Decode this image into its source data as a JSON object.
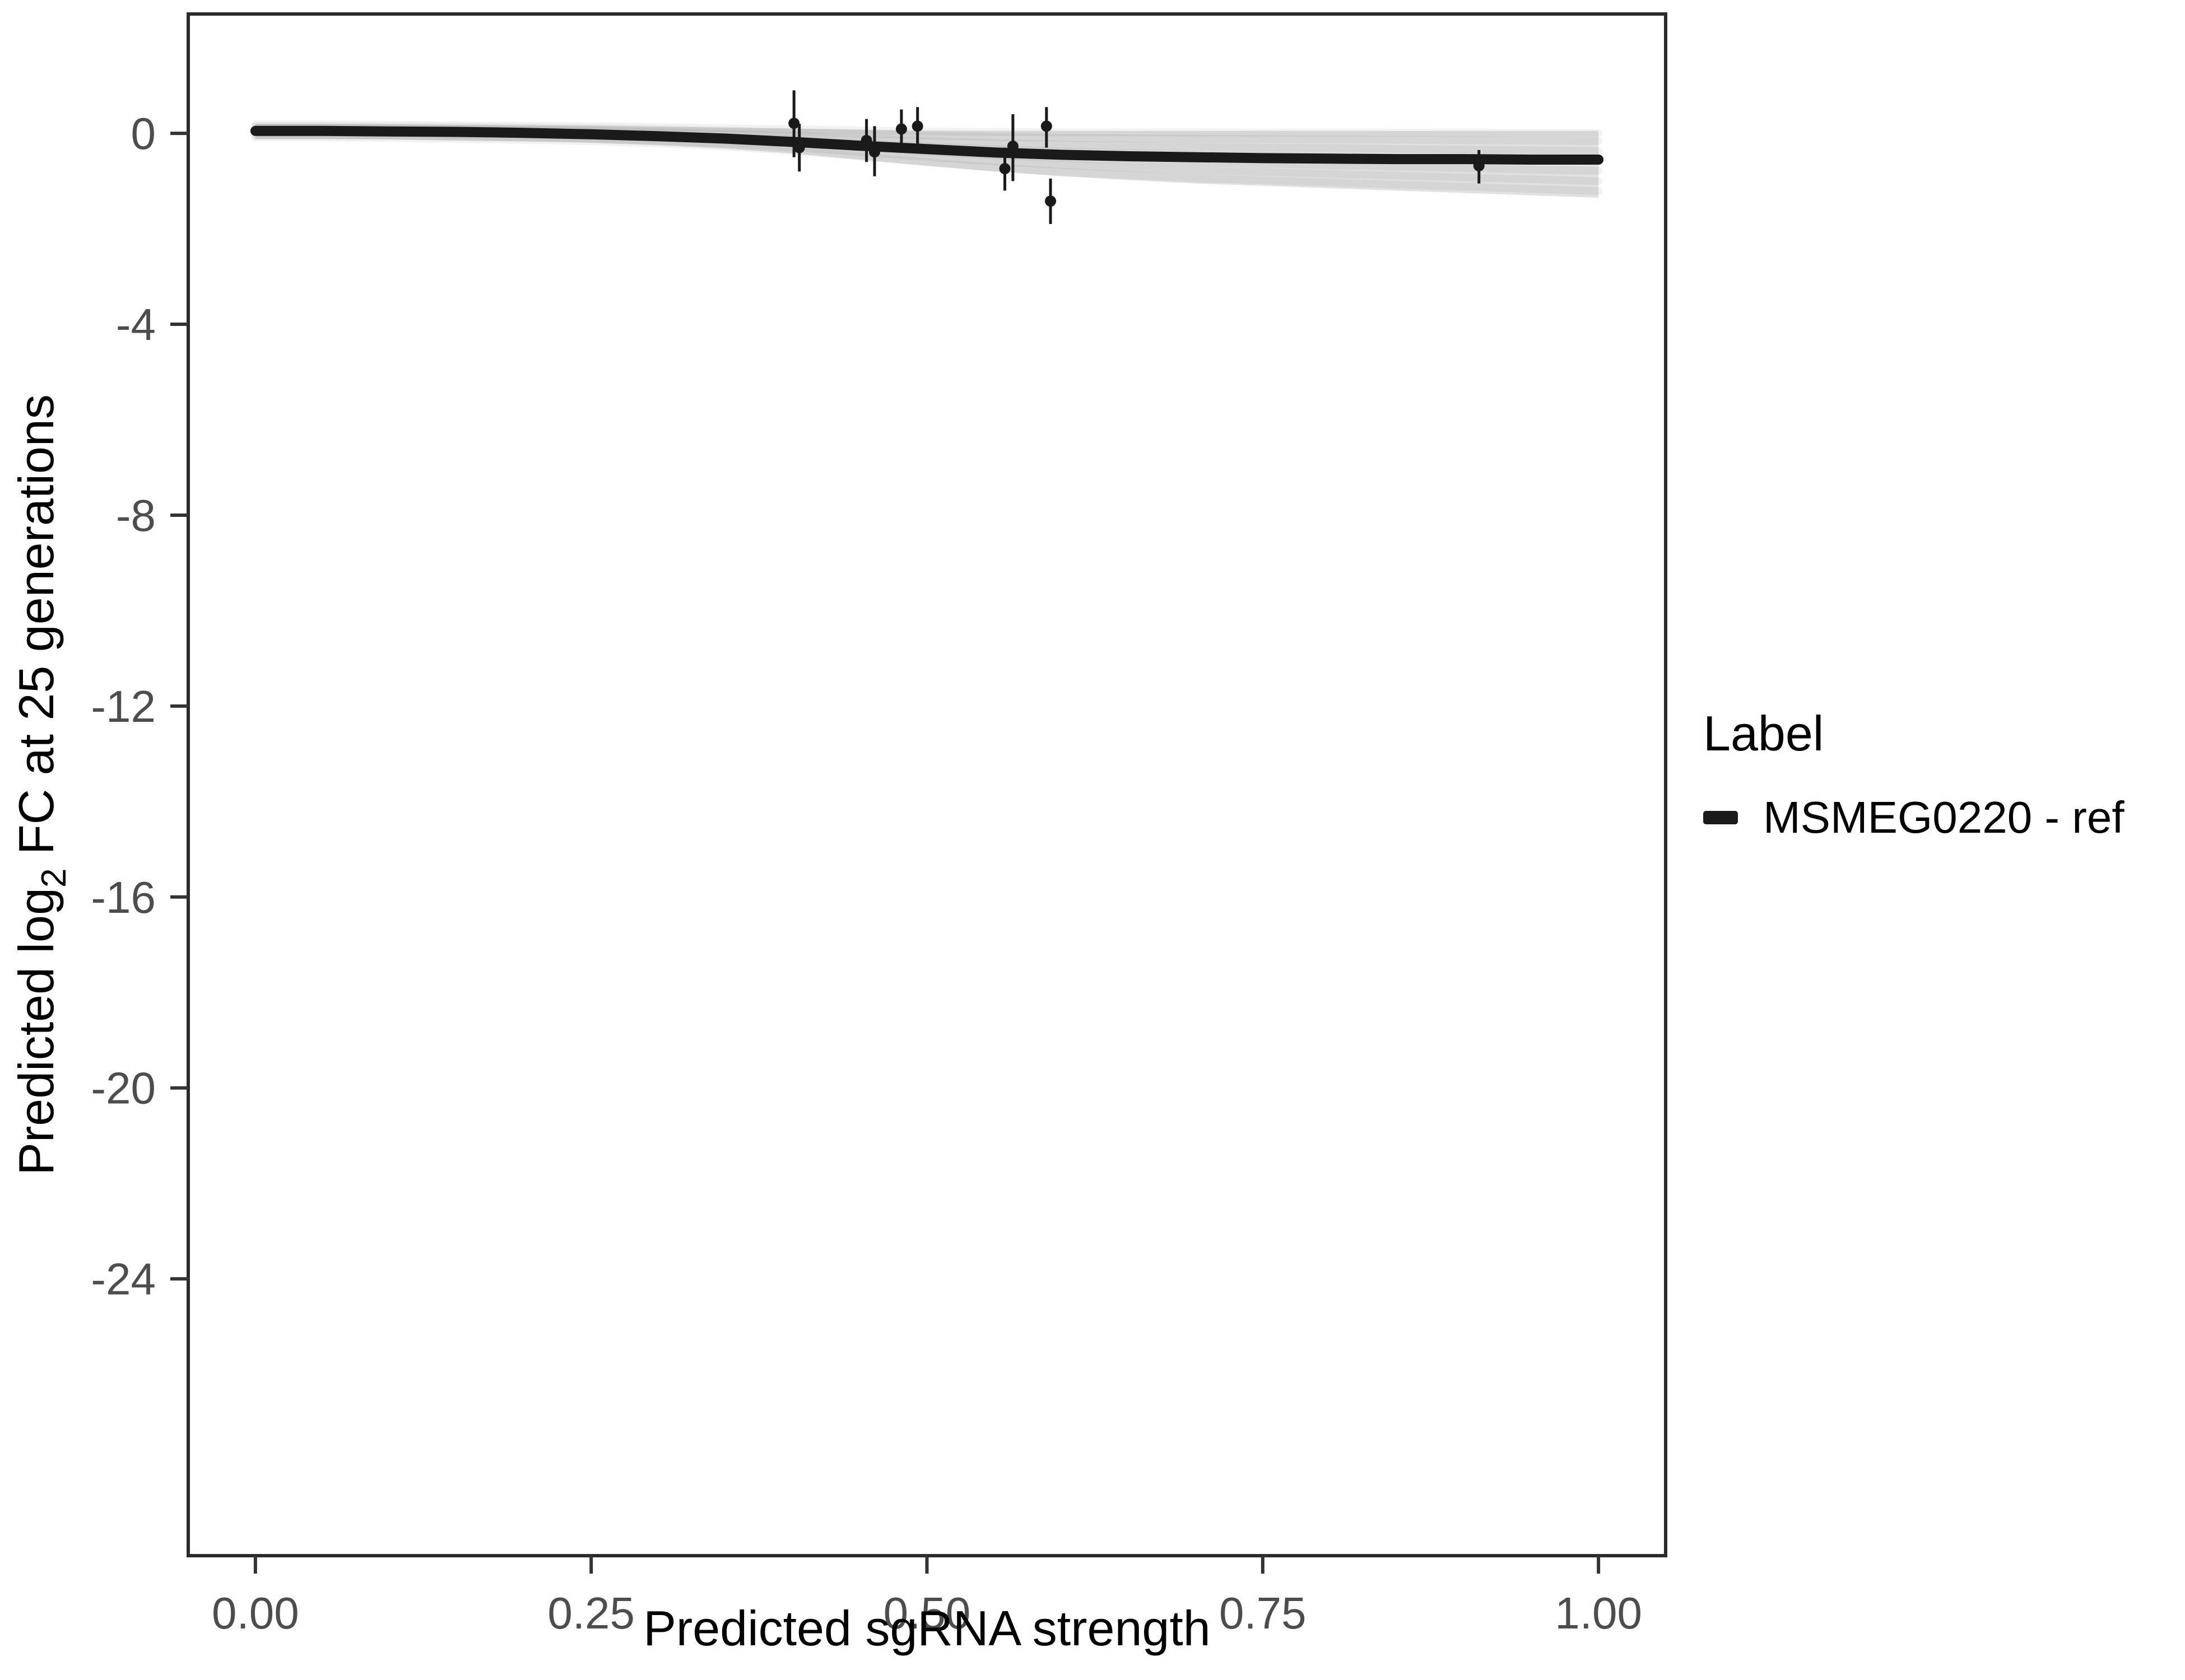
{
  "figure": {
    "background": "#ffffff",
    "panel_border_color": "#2b2b2b",
    "tick_color": "#333333",
    "tick_label_color": "#4d4d4d",
    "axis_title_color": "#000000"
  },
  "legend": {
    "title": "Label",
    "items": [
      {
        "label": "MSMEG0220 - ref",
        "color": "#1a1a1a"
      }
    ]
  },
  "chart_data": {
    "type": "line",
    "title": "",
    "xlabel": "Predicted sgRNA strength",
    "ylabel_parts": [
      "Predicted  log",
      "2",
      " FC at 25 generations"
    ],
    "xlim": [
      -0.05,
      1.05
    ],
    "ylim": [
      -29.8,
      2.5
    ],
    "grid": false,
    "legend_position": "right",
    "x_ticks": {
      "values": [
        0,
        0.25,
        0.5,
        0.75,
        1.0
      ],
      "labels": [
        "0.00",
        "0.25",
        "0.50",
        "0.75",
        "1.00"
      ]
    },
    "y_ticks": {
      "values": [
        0,
        -4,
        -8,
        -12,
        -16,
        -20,
        -24
      ],
      "labels": [
        "0",
        "-4",
        "-8",
        "-12",
        "-16",
        "-20",
        "-24"
      ]
    },
    "series": [
      {
        "name": "MSMEG0220 - ref",
        "color": "#1a1a1a",
        "x": [
          0,
          0.05,
          0.1,
          0.15,
          0.2,
          0.25,
          0.3,
          0.35,
          0.4,
          0.45,
          0.5,
          0.55,
          0.6,
          0.65,
          0.7,
          0.75,
          0.8,
          0.85,
          0.9,
          0.95,
          1.0
        ],
        "y": [
          0.05,
          0.05,
          0.04,
          0.03,
          0.01,
          -0.02,
          -0.06,
          -0.11,
          -0.18,
          -0.26,
          -0.33,
          -0.4,
          -0.45,
          -0.48,
          -0.5,
          -0.52,
          -0.53,
          -0.54,
          -0.54,
          -0.55,
          -0.55
        ]
      }
    ],
    "band": {
      "color": "#c9c9c9",
      "opacity": 0.55,
      "x": [
        0,
        0.05,
        0.1,
        0.15,
        0.2,
        0.25,
        0.3,
        0.35,
        0.4,
        0.45,
        0.5,
        0.55,
        0.6,
        0.65,
        0.7,
        0.75,
        0.8,
        0.85,
        0.9,
        0.95,
        1.0
      ],
      "upper": [
        0.2,
        0.2,
        0.19,
        0.18,
        0.17,
        0.16,
        0.14,
        0.12,
        0.1,
        0.08,
        0.06,
        0.05,
        0.05,
        0.05,
        0.05,
        0.05,
        0.05,
        0.05,
        0.05,
        0.05,
        0.05
      ],
      "lower": [
        -0.12,
        -0.12,
        -0.13,
        -0.15,
        -0.17,
        -0.2,
        -0.25,
        -0.32,
        -0.42,
        -0.55,
        -0.68,
        -0.8,
        -0.9,
        -0.98,
        -1.05,
        -1.1,
        -1.15,
        -1.2,
        -1.25,
        -1.3,
        -1.35
      ]
    },
    "points": [
      {
        "x": 0.401,
        "y": 0.21,
        "ymin": -0.5,
        "ymax": 0.9
      },
      {
        "x": 0.405,
        "y": -0.3,
        "ymin": -0.8,
        "ymax": 0.2
      },
      {
        "x": 0.455,
        "y": -0.15,
        "ymin": -0.6,
        "ymax": 0.3
      },
      {
        "x": 0.461,
        "y": -0.39,
        "ymin": -0.9,
        "ymax": 0.15
      },
      {
        "x": 0.481,
        "y": 0.09,
        "ymin": -0.3,
        "ymax": 0.5
      },
      {
        "x": 0.493,
        "y": 0.15,
        "ymin": -0.25,
        "ymax": 0.55
      },
      {
        "x": 0.558,
        "y": -0.74,
        "ymin": -1.2,
        "ymax": -0.3
      },
      {
        "x": 0.564,
        "y": -0.27,
        "ymin": -1.0,
        "ymax": 0.4
      },
      {
        "x": 0.589,
        "y": 0.15,
        "ymin": -0.3,
        "ymax": 0.55
      },
      {
        "x": 0.592,
        "y": -1.42,
        "ymin": -1.9,
        "ymax": -0.95
      },
      {
        "x": 0.911,
        "y": -0.68,
        "ymin": -1.05,
        "ymax": -0.35
      }
    ]
  }
}
